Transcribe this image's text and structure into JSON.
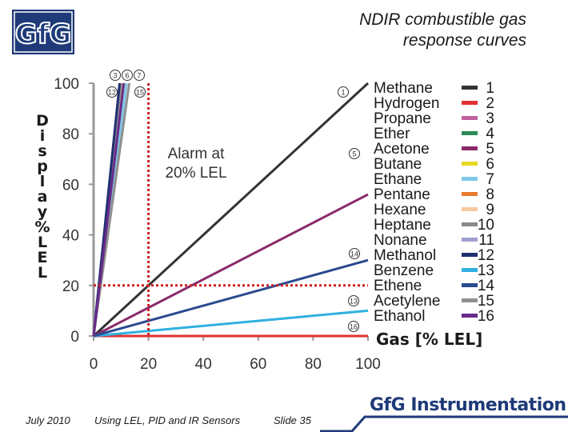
{
  "logo_text": "GfG",
  "title_line1": "NDIR combustible gas",
  "title_line2": "response curves",
  "footer": {
    "date": "July 2010",
    "subject": "Using LEL, PID and IR Sensors",
    "slide": "Slide 35"
  },
  "brand": "GfG Instrumentation",
  "colors": {
    "alarm": "#cc2222",
    "brand": "#1e3a78",
    "axis": "#333333"
  },
  "chart_data": {
    "type": "line",
    "xlabel": "Gas [% LEL]",
    "ylabel": "Display % LEL",
    "xlim": [
      0,
      100
    ],
    "ylim": [
      0,
      100
    ],
    "xticks": [
      "0",
      "20",
      "40",
      "60",
      "80",
      "100"
    ],
    "yticks": [
      "0",
      "20",
      "40",
      "60",
      "80",
      "100"
    ],
    "grid": false,
    "legend_placement": "right",
    "annotation": "Alarm at 20% LEL",
    "alarm_level": 20,
    "curve_markers": [
      "3",
      "6",
      "7",
      "12",
      "15",
      "1",
      "5",
      "14",
      "13",
      "16"
    ],
    "series": [
      {
        "name": "Methane",
        "number": "1",
        "color": "#333333",
        "x": [
          0,
          100
        ],
        "y": [
          0,
          100
        ]
      },
      {
        "name": "Hydrogen",
        "number": "2",
        "color": "#e03030",
        "x": [
          0,
          100
        ],
        "y": [
          0,
          0
        ]
      },
      {
        "name": "Propane",
        "number": "3",
        "color": "#c060a0",
        "x": [
          0,
          10
        ],
        "y": [
          0,
          100
        ]
      },
      {
        "name": "Ether",
        "number": "4",
        "color": "#2e8b57",
        "x": [
          0,
          11
        ],
        "y": [
          0,
          100
        ]
      },
      {
        "name": "Acetone",
        "number": "5",
        "color": "#8b2a6a",
        "x": [
          0,
          100
        ],
        "y": [
          0,
          56
        ]
      },
      {
        "name": "Butane",
        "number": "6",
        "color": "#e8d820",
        "x": [
          0,
          11
        ],
        "y": [
          0,
          100
        ]
      },
      {
        "name": "Ethane",
        "number": "7",
        "color": "#7ec8e8",
        "x": [
          0,
          12
        ],
        "y": [
          0,
          100
        ]
      },
      {
        "name": "Pentane",
        "number": "8",
        "color": "#e87a30",
        "x": [
          0,
          10.5
        ],
        "y": [
          0,
          100
        ]
      },
      {
        "name": "Hexane",
        "number": "9",
        "color": "#f4c8a0",
        "x": [
          0,
          10.5
        ],
        "y": [
          0,
          100
        ]
      },
      {
        "name": "Heptane",
        "number": "10",
        "color": "#8a8a8a",
        "x": [
          0,
          10
        ],
        "y": [
          0,
          100
        ]
      },
      {
        "name": "Nonane",
        "number": "11",
        "color": "#a0a0d0",
        "x": [
          0,
          9.5
        ],
        "y": [
          0,
          100
        ]
      },
      {
        "name": "Methanol",
        "number": "12",
        "color": "#1f3070",
        "x": [
          0,
          9.5
        ],
        "y": [
          0,
          100
        ]
      },
      {
        "name": "Benzene",
        "number": "13",
        "color": "#30b0e0",
        "x": [
          0,
          100
        ],
        "y": [
          0,
          10
        ]
      },
      {
        "name": "Ethene",
        "number": "14",
        "color": "#2a4a90",
        "x": [
          0,
          100
        ],
        "y": [
          0,
          30
        ]
      },
      {
        "name": "Acetylene",
        "number": "15",
        "color": "#909090",
        "x": [
          0,
          13
        ],
        "y": [
          0,
          100
        ]
      },
      {
        "name": "Ethanol",
        "number": "16",
        "color": "#6a2a8a",
        "x": [
          0,
          11
        ],
        "y": [
          0,
          100
        ]
      }
    ]
  }
}
